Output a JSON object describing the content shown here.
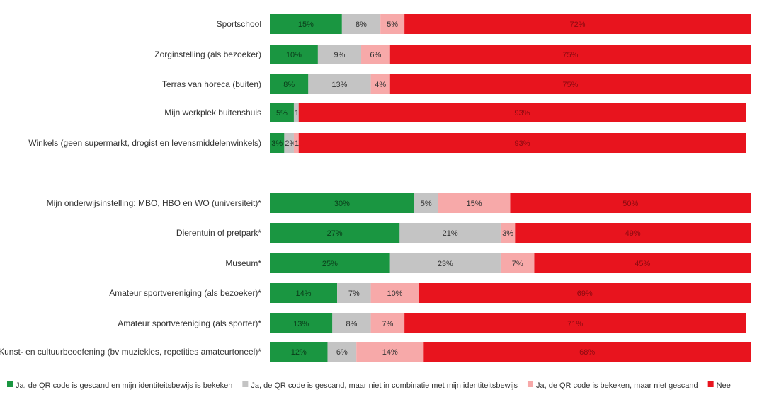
{
  "chart_data": {
    "type": "bar",
    "orientation": "horizontal",
    "stacked": true,
    "value_format": "percent",
    "xlim": [
      0,
      100
    ],
    "grid": false,
    "legend_position": "bottom",
    "groups": [
      {
        "categories": [
          "Sportschool",
          "Zorginstelling (als bezoeker)",
          "Terras van horeca (buiten)",
          "Mijn werkplek buitenshuis",
          "Winkels (geen supermarkt, drogist en levensmiddelenwinkels)"
        ]
      },
      {
        "categories": [
          "Mijn onderwijsinstelling: MBO, HBO en WO (universiteit)*",
          "Dierentuin of pretpark*",
          "Museum*",
          "Amateur sportvereniging (als bezoeker)*",
          "Amateur sportvereniging (als sporter)*",
          "Kunst- en cultuurbeoefening (bv muziekles, repetities amateurtoneel)*"
        ]
      }
    ],
    "categories": [
      "Sportschool",
      "Zorginstelling (als bezoeker)",
      "Terras van horeca (buiten)",
      "Mijn werkplek buitenshuis",
      "Winkels (geen supermarkt, drogist en levensmiddelenwinkels)",
      "Mijn onderwijsinstelling: MBO, HBO en WO (universiteit)*",
      "Dierentuin of pretpark*",
      "Museum*",
      "Amateur sportvereniging (als bezoeker)*",
      "Amateur sportvereniging (als sporter)*",
      "Kunst- en cultuurbeoefening (bv muziekles, repetities amateurtoneel)*"
    ],
    "series": [
      {
        "name": "Ja, de QR code is gescand en mijn identiteitsbewijs is bekeken",
        "color": "#1a9641",
        "label_color": "#0a3d1a",
        "values": [
          15,
          10,
          8,
          5,
          3,
          30,
          27,
          25,
          14,
          13,
          12
        ]
      },
      {
        "name": "Ja, de QR code is gescand, maar niet in combinatie met mijn identiteitsbewijs",
        "color": "#c4c4c4",
        "label_color": "#333333",
        "values": [
          8,
          9,
          13,
          1,
          2,
          5,
          21,
          23,
          7,
          8,
          6
        ]
      },
      {
        "name": "Ja, de QR code is bekeken, maar niet gescand",
        "color": "#f7a9a9",
        "label_color": "#333333",
        "values": [
          5,
          6,
          4,
          0,
          1,
          15,
          3,
          7,
          10,
          7,
          14
        ]
      },
      {
        "name": "Nee",
        "color": "#e8141e",
        "label_color": "#8b0a10",
        "values": [
          72,
          75,
          75,
          93,
          93,
          50,
          49,
          45,
          69,
          71,
          68
        ]
      }
    ]
  }
}
